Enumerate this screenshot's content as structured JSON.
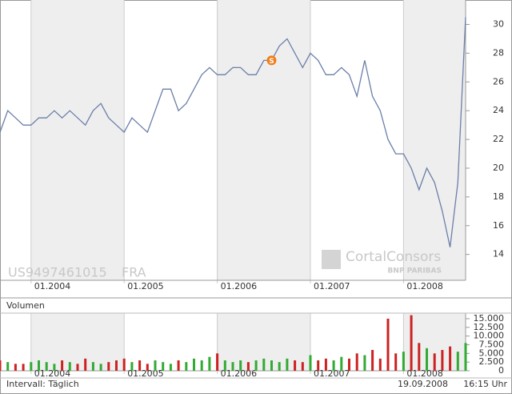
{
  "chart_data": [
    {
      "type": "line",
      "color": "#6b7fa8",
      "x": [
        "09.2003",
        "10.2003",
        "11.2003",
        "12.2003",
        "01.2004",
        "02.2004",
        "03.2004",
        "04.2004",
        "05.2004",
        "06.2004",
        "07.2004",
        "08.2004",
        "09.2004",
        "10.2004",
        "11.2004",
        "12.2004",
        "01.2005",
        "02.2005",
        "03.2005",
        "04.2005",
        "05.2005",
        "06.2005",
        "07.2005",
        "08.2005",
        "09.2005",
        "10.2005",
        "11.2005",
        "12.2005",
        "01.2006",
        "02.2006",
        "03.2006",
        "04.2006",
        "05.2006",
        "06.2006",
        "07.2006",
        "08.2006",
        "09.2006",
        "10.2006",
        "11.2006",
        "12.2006",
        "01.2007",
        "02.2007",
        "03.2007",
        "04.2007",
        "05.2007",
        "06.2007",
        "07.2007",
        "08.2007",
        "09.2007",
        "10.2007",
        "11.2007",
        "12.2007",
        "01.2008",
        "02.2008",
        "03.2008",
        "04.2008",
        "05.2008",
        "06.2008",
        "07.2008",
        "08.2008",
        "09.2008"
      ],
      "values": [
        22.5,
        24,
        23.5,
        23,
        23,
        23.5,
        23.5,
        24,
        23.5,
        24,
        23.5,
        23,
        24,
        24.5,
        23.5,
        23,
        22.5,
        23.5,
        23,
        22.5,
        24,
        25.5,
        25.5,
        24,
        24.5,
        25.5,
        26.5,
        27,
        26.5,
        26.5,
        27,
        27,
        26.5,
        26.5,
        27.5,
        27.5,
        28.5,
        29,
        28,
        27,
        28,
        27.5,
        26.5,
        26.5,
        27,
        26.5,
        25,
        27.5,
        25,
        24,
        22,
        21,
        21,
        20,
        18.5,
        20,
        19,
        17,
        14.5,
        19,
        30.5
      ],
      "xlim": [
        "09.2003",
        "09.2008"
      ],
      "xticks": [
        "01.2004",
        "01.2005",
        "01.2006",
        "01.2007",
        "01.2008"
      ],
      "ylim": [
        12.2,
        31.7
      ],
      "yticks": [
        14,
        16,
        18,
        20,
        22,
        24,
        26,
        28,
        30
      ],
      "band_color": "#eeeeee",
      "annotations": [
        {
          "label": "S",
          "x": "08.2006",
          "color": "#f07f1a"
        }
      ],
      "symbol": "US9497461015",
      "exchange": "FRA",
      "watermark": "CortalConsors",
      "watermark_sub": "BNP PARIBAS"
    },
    {
      "type": "bar",
      "title": "Volumen",
      "colors": [
        "#cc2222",
        "#33aa33"
      ],
      "x": [
        "09.2003",
        "10.2003",
        "11.2003",
        "12.2003",
        "01.2004",
        "02.2004",
        "03.2004",
        "04.2004",
        "05.2004",
        "06.2004",
        "07.2004",
        "08.2004",
        "09.2004",
        "10.2004",
        "11.2004",
        "12.2004",
        "01.2005",
        "02.2005",
        "03.2005",
        "04.2005",
        "05.2005",
        "06.2005",
        "07.2005",
        "08.2005",
        "09.2005",
        "10.2005",
        "11.2005",
        "12.2005",
        "01.2006",
        "02.2006",
        "03.2006",
        "04.2006",
        "05.2006",
        "06.2006",
        "07.2006",
        "08.2006",
        "09.2006",
        "10.2006",
        "11.2006",
        "12.2006",
        "01.2007",
        "02.2007",
        "03.2007",
        "04.2007",
        "05.2007",
        "06.2007",
        "07.2007",
        "08.2007",
        "09.2007",
        "10.2007",
        "11.2007",
        "12.2007",
        "01.2008",
        "02.2008",
        "03.2008",
        "04.2008",
        "05.2008",
        "06.2008",
        "07.2008",
        "08.2008",
        "09.2008"
      ],
      "values": [
        3000,
        2500,
        2000,
        2000,
        2500,
        3000,
        2500,
        2000,
        3000,
        2500,
        2000,
        3500,
        2500,
        2000,
        2500,
        3000,
        3500,
        2500,
        3000,
        2000,
        3000,
        2500,
        2000,
        3000,
        2500,
        3500,
        3000,
        4000,
        5000,
        3000,
        2500,
        3000,
        2500,
        3000,
        3500,
        3000,
        2500,
        3500,
        3000,
        2500,
        4500,
        3000,
        3500,
        3000,
        4000,
        3500,
        5000,
        4500,
        6000,
        3500,
        15000,
        5000,
        5500,
        16000,
        8000,
        6500,
        5000,
        6000,
        7000,
        5500,
        8000
      ],
      "xlim": [
        "09.2003",
        "09.2008"
      ],
      "xticks": [
        "01.2004",
        "01.2005",
        "01.2006",
        "01.2007",
        "01.2008"
      ],
      "ylim": [
        0,
        16600
      ],
      "yticks": [
        0,
        {
          "value": 2500,
          "label": "2.500"
        },
        {
          "value": 5000,
          "label": "5.000"
        },
        {
          "value": 7500,
          "label": "7.500"
        },
        {
          "value": 10000,
          "label": "10.000"
        },
        {
          "value": 12500,
          "label": "12.500"
        },
        {
          "value": 15000,
          "label": "15.000"
        }
      ],
      "band_color": "#eeeeee",
      "footer": {
        "interval": "Intervall: Täglich",
        "date": "19.09.2008",
        "time": "16:15 Uhr"
      }
    }
  ]
}
